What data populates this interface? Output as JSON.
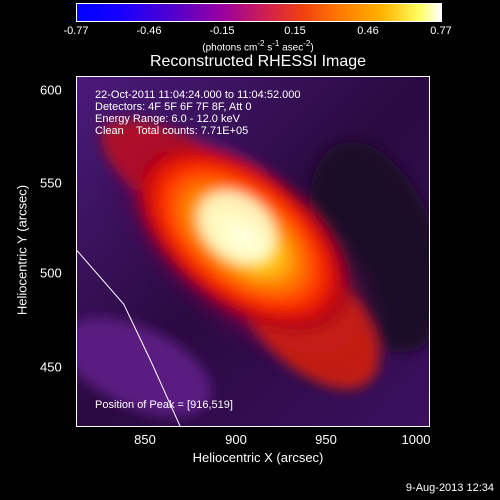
{
  "chart_data": {
    "type": "heatmap",
    "title": "Reconstructed RHESSI Image",
    "xlabel": "Heliocentric X (arcsec)",
    "ylabel": "Heliocentric Y (arcsec)",
    "xlim": [
      815,
      1003
    ],
    "ylim": [
      420,
      615
    ],
    "xticks": [
      "850",
      "900",
      "950",
      "1000"
    ],
    "yticks": [
      "450",
      "500",
      "550",
      "600"
    ],
    "colorbar": {
      "ticks": [
        "-0.77",
        "-0.46",
        "-0.15",
        "0.15",
        "0.46",
        "0.77"
      ],
      "range": [
        -0.77,
        0.77
      ],
      "units_text": "(photons cm",
      "units_sup1": "-2",
      "units_s": " s",
      "units_sup2": "-1",
      "units_asec": " asec",
      "units_sup3": "-2",
      "units_close": ")"
    },
    "peak": [
      916,
      519
    ],
    "annotations": {
      "time": "22-Oct-2011 11:04:24.000 to 11:04:52.000",
      "detectors": "Detectors: 4F 5F 6F 7F 8F, Att 0",
      "energy": "Energy Range: 6.0 - 12.0 keV",
      "clean": "Clean",
      "total": "Total counts: 7.71E+05",
      "peak": "Position of Peak = [916,519]"
    },
    "limb_curve": [
      [
        815,
        518
      ],
      [
        840,
        488
      ],
      [
        855,
        455
      ],
      [
        870,
        420
      ]
    ]
  },
  "footer": {
    "date": "9-Aug-2013 12:34"
  }
}
